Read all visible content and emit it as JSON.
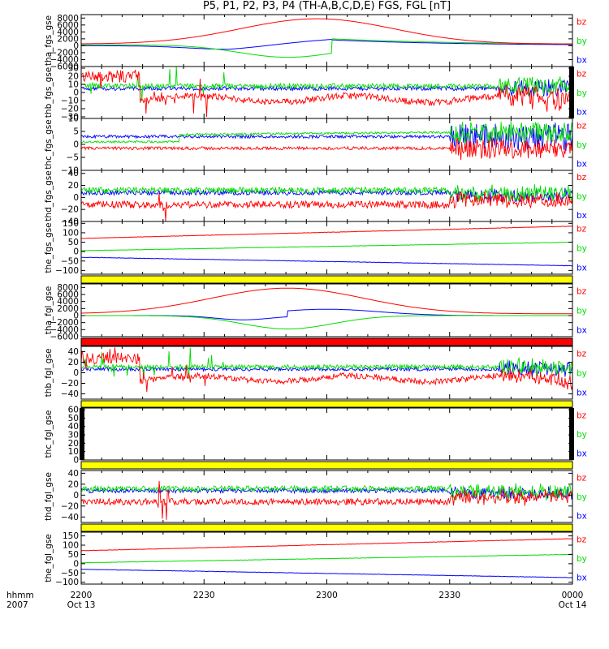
{
  "title": "P5, P1, P2, P3, P4 (TH-A,B,C,D,E) FGS, FGL [nT]",
  "colors": {
    "bx": "#0000ff",
    "by": "#00dd00",
    "bz": "#ff0000",
    "flag_yellow": "#ffff00",
    "flag_red": "#ff0000"
  },
  "legend": [
    "bz",
    "by",
    "bx"
  ],
  "chart_data": {
    "type": "line",
    "title": "P5, P1, P2, P3, P4 (TH-A,B,C,D,E) FGS, FGL [nT]",
    "x_axis": {
      "label_top": "hhmm",
      "label_bottom": "2007",
      "ticks": [
        "2200",
        "2230",
        "2300",
        "2330",
        "0000"
      ],
      "date_labels": [
        "Oct 13",
        "",
        "",
        "",
        "Oct 14"
      ],
      "range": [
        "2007-10-13 22:00",
        "2007-10-14 00:00"
      ]
    },
    "panels": [
      {
        "ylabel": "tha_fgs_gse",
        "ylim": [
          -6000,
          9000
        ],
        "yticks": [
          "8000",
          "6000",
          "4000",
          "2000",
          "0",
          "−2000",
          "−4000",
          "−6000"
        ],
        "kind": "smooth_a",
        "series": [
          {
            "name": "bz"
          },
          {
            "name": "by"
          },
          {
            "name": "bx"
          }
        ]
      },
      {
        "ylabel": "thb_fgs_gse",
        "ylim": [
          -32,
          32
        ],
        "yticks": [
          "30",
          "20",
          "10",
          "0",
          "−10",
          "−20",
          "−30"
        ],
        "kind": "noisy_b",
        "series": [
          {
            "name": "bz"
          },
          {
            "name": "by"
          },
          {
            "name": "bx"
          }
        ]
      },
      {
        "ylabel": "thc_fgs_gse",
        "ylim": [
          -10,
          10
        ],
        "yticks": [
          "10",
          "5",
          "0",
          "−5",
          "−10"
        ],
        "kind": "noisy_c",
        "series": [
          {
            "name": "bz"
          },
          {
            "name": "by"
          },
          {
            "name": "bx"
          }
        ]
      },
      {
        "ylabel": "thd_fgs_gse",
        "ylim": [
          -40,
          45
        ],
        "yticks": [
          "40",
          "20",
          "0",
          "−20",
          "−40"
        ],
        "kind": "noisy_d",
        "series": [
          {
            "name": "bz"
          },
          {
            "name": "by"
          },
          {
            "name": "bx"
          }
        ]
      },
      {
        "ylabel": "the_fgs_gse",
        "ylim": [
          -120,
          160
        ],
        "yticks": [
          "150",
          "100",
          "50",
          "0",
          "−50",
          "−100"
        ],
        "kind": "linear_e",
        "series": [
          {
            "name": "bz"
          },
          {
            "name": "by"
          },
          {
            "name": "bx"
          }
        ]
      },
      {
        "ylabel": "tha_fgl_gse",
        "ylim": [
          -6000,
          9000
        ],
        "yticks": [
          "8000",
          "6000",
          "4000",
          "2000",
          "0",
          "−2000",
          "−4000",
          "−6000"
        ],
        "kind": "smooth_a2",
        "series": [
          {
            "name": "bz"
          },
          {
            "name": "by"
          },
          {
            "name": "bx"
          }
        ]
      },
      {
        "ylabel": "thb_fgl_gse",
        "ylim": [
          -50,
          50
        ],
        "yticks": [
          "40",
          "20",
          "0",
          "−20",
          "−40"
        ],
        "kind": "noisy_b2",
        "series": [
          {
            "name": "bz"
          },
          {
            "name": "by"
          },
          {
            "name": "bx"
          }
        ]
      },
      {
        "ylabel": "thc_fgl_gse",
        "ylim": [
          0,
          62
        ],
        "yticks": [
          "60",
          "50",
          "40",
          "30",
          "20",
          "10",
          "0"
        ],
        "kind": "empty",
        "series": [
          {
            "name": "bz"
          },
          {
            "name": "by"
          },
          {
            "name": "bx"
          }
        ]
      },
      {
        "ylabel": "thd_fgl_gse",
        "ylim": [
          -50,
          45
        ],
        "yticks": [
          "40",
          "20",
          "0",
          "−20",
          "−40"
        ],
        "kind": "noisy_d",
        "series": [
          {
            "name": "bz"
          },
          {
            "name": "by"
          },
          {
            "name": "bx"
          }
        ]
      },
      {
        "ylabel": "the_fgl_gse",
        "ylim": [
          -110,
          170
        ],
        "yticks": [
          "150",
          "100",
          "50",
          "0",
          "−50",
          "−100"
        ],
        "kind": "linear_e",
        "series": [
          {
            "name": "bz"
          },
          {
            "name": "by"
          },
          {
            "name": "bx"
          }
        ]
      }
    ],
    "flag_bars": [
      {
        "after_panel": 4,
        "color": "yellow"
      },
      {
        "after_panel": 5,
        "color": "red"
      },
      {
        "after_panel": 6,
        "color": "yellow"
      },
      {
        "after_panel": 7,
        "color": "yellow"
      },
      {
        "after_panel": 8,
        "color": "yellow"
      }
    ]
  }
}
